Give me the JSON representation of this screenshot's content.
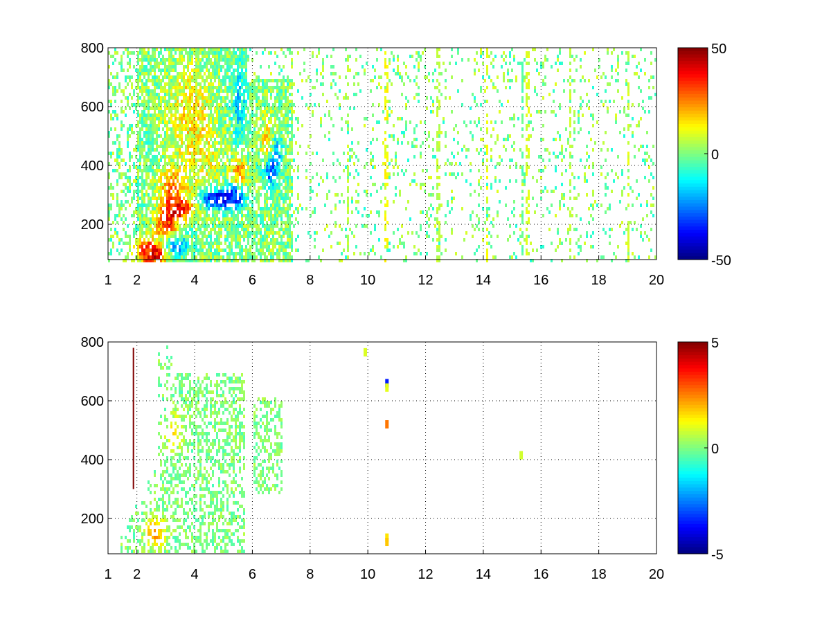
{
  "chart_data": [
    {
      "type": "heatmap",
      "title": "",
      "xlabel": "",
      "ylabel": "",
      "xlim": [
        1,
        20
      ],
      "ylim": [
        80,
        800
      ],
      "x_ticks": [
        "1",
        "2",
        "4",
        "6",
        "8",
        "10",
        "12",
        "14",
        "16",
        "18",
        "20"
      ],
      "x_tick_values": [
        1,
        2,
        4,
        6,
        8,
        10,
        12,
        14,
        16,
        18,
        20
      ],
      "y_ticks": [
        "200",
        "400",
        "600",
        "800"
      ],
      "y_tick_values": [
        200,
        400,
        600,
        800
      ],
      "grid": "dotted",
      "colormap": "jet",
      "colorbar": {
        "ticks": [
          "50",
          "0",
          "-50"
        ],
        "tick_values": [
          50,
          0,
          -50
        ],
        "clim": [
          -50,
          50
        ]
      },
      "features": [
        {
          "x": 2.6,
          "y": 105,
          "value": 42,
          "sx": 0.45,
          "sy": 30
        },
        {
          "x": 2.3,
          "y": 120,
          "value": 30,
          "sx": 0.3,
          "sy": 40
        },
        {
          "x": 3.4,
          "y": 260,
          "value": 40,
          "sx": 0.5,
          "sy": 35
        },
        {
          "x": 3.0,
          "y": 200,
          "value": 32,
          "sx": 0.4,
          "sy": 50
        },
        {
          "x": 3.2,
          "y": 330,
          "value": 25,
          "sx": 0.45,
          "sy": 60
        },
        {
          "x": 3.8,
          "y": 600,
          "value": 14,
          "sx": 0.7,
          "sy": 150
        },
        {
          "x": 4.2,
          "y": 430,
          "value": 10,
          "sx": 0.7,
          "sy": 120
        },
        {
          "x": 4.7,
          "y": 290,
          "value": -42,
          "sx": 0.5,
          "sy": 30
        },
        {
          "x": 5.3,
          "y": 300,
          "value": -35,
          "sx": 0.4,
          "sy": 40
        },
        {
          "x": 5.5,
          "y": 380,
          "value": 24,
          "sx": 0.25,
          "sy": 50
        },
        {
          "x": 5.5,
          "y": 620,
          "value": -16,
          "sx": 0.25,
          "sy": 120
        },
        {
          "x": 3.3,
          "y": 135,
          "value": -28,
          "sx": 0.45,
          "sy": 35
        },
        {
          "x": 6.6,
          "y": 380,
          "value": -30,
          "sx": 0.25,
          "sy": 40
        },
        {
          "x": 6.5,
          "y": 500,
          "value": 18,
          "sx": 0.25,
          "sy": 70
        },
        {
          "x": 6.8,
          "y": 450,
          "value": -22,
          "sx": 0.2,
          "sy": 60
        }
      ],
      "stripes": [
        {
          "x": 10.6,
          "value": 12
        },
        {
          "x": 14.1,
          "value": 10
        },
        {
          "x": 15.3,
          "value": -4
        },
        {
          "x": 15.5,
          "value": 9
        },
        {
          "x": 12.4,
          "value": 6
        },
        {
          "x": 19.0,
          "value": 8
        },
        {
          "x": 17.0,
          "value": 6
        },
        {
          "x": 9.3,
          "value": 6
        }
      ]
    },
    {
      "type": "heatmap",
      "title": "",
      "xlabel": "",
      "ylabel": "",
      "xlim": [
        1,
        20
      ],
      "ylim": [
        80,
        800
      ],
      "x_ticks": [
        "1",
        "2",
        "4",
        "6",
        "8",
        "10",
        "12",
        "14",
        "16",
        "18",
        "20"
      ],
      "x_tick_values": [
        1,
        2,
        4,
        6,
        8,
        10,
        12,
        14,
        16,
        18,
        20
      ],
      "y_ticks": [
        "200",
        "400",
        "600",
        "800"
      ],
      "y_tick_values": [
        200,
        400,
        600,
        800
      ],
      "grid": "dotted",
      "colormap": "jet",
      "colorbar": {
        "ticks": [
          "5",
          "0",
          "-5"
        ],
        "tick_values": [
          5,
          0,
          -5
        ],
        "clim": [
          -5,
          5
        ]
      },
      "features": [
        {
          "x": 2.6,
          "y": 160,
          "value": 2.2,
          "sx": 0.35,
          "sy": 50
        },
        {
          "x": 3.3,
          "y": 500,
          "value": 1.2,
          "sx": 0.35,
          "sy": 60
        }
      ],
      "markers": [
        {
          "x": 10.65,
          "y": 660,
          "value": -3.5
        },
        {
          "x": 10.65,
          "y": 645,
          "value": 1.0
        },
        {
          "x": 10.65,
          "y": 520,
          "value": 2.6
        },
        {
          "x": 10.65,
          "y": 135,
          "value": 1.5
        },
        {
          "x": 10.65,
          "y": 120,
          "value": 1.8
        },
        {
          "x": 15.3,
          "y": 415,
          "value": 0.8
        },
        {
          "x": 9.9,
          "y": 765,
          "value": 0.9
        }
      ],
      "lines": [
        {
          "x": 1.88,
          "y0": 300,
          "y1": 780,
          "value": 5
        }
      ]
    }
  ]
}
